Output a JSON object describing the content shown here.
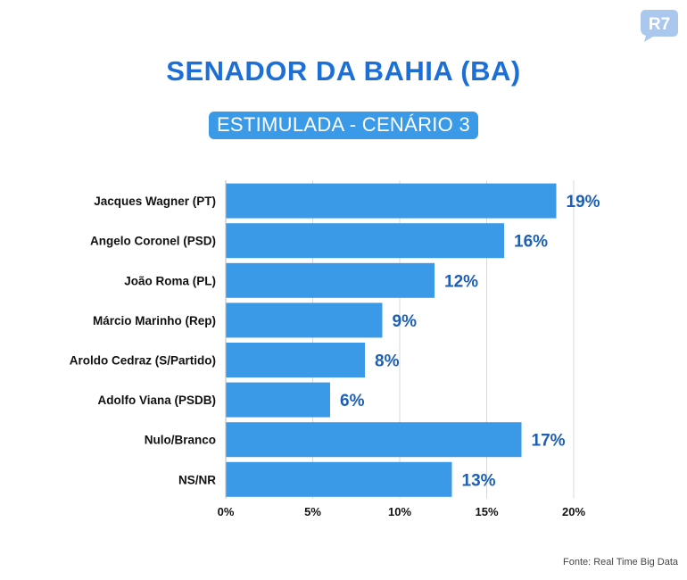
{
  "header": {
    "title": "SENADOR DA BAHIA (BA)",
    "subtitle": "ESTIMULADA - CENÁRIO 3",
    "logo_text": "R7"
  },
  "footer": {
    "source": "Fonte: Real Time Big Data"
  },
  "colors": {
    "bar": "#3b9ae8",
    "title": "#1d6fd8",
    "value": "#1d5fb4",
    "grid": "#d9d9d9",
    "logo": "#aac8ee"
  },
  "chart_data": {
    "type": "bar",
    "orientation": "horizontal",
    "title": "SENADOR DA BAHIA (BA)",
    "subtitle": "ESTIMULADA - CENÁRIO 3",
    "categories": [
      "Jacques Wagner (PT)",
      "Angelo Coronel (PSD)",
      "João Roma (PL)",
      "Márcio Marinho (Rep)",
      "Aroldo Cedraz (S/Partido)",
      "Adolfo Viana (PSDB)",
      "Nulo/Branco",
      "NS/NR"
    ],
    "values": [
      19,
      16,
      12,
      9,
      8,
      6,
      17,
      13
    ],
    "value_labels": [
      "19%",
      "16%",
      "12%",
      "9%",
      "8%",
      "6%",
      "17%",
      "13%"
    ],
    "xlim": [
      0,
      20
    ],
    "xticks": [
      0,
      5,
      10,
      15,
      20
    ],
    "xtick_labels": [
      "0%",
      "5%",
      "10%",
      "15%",
      "20%"
    ],
    "grid": true,
    "xlabel": "",
    "ylabel": ""
  }
}
